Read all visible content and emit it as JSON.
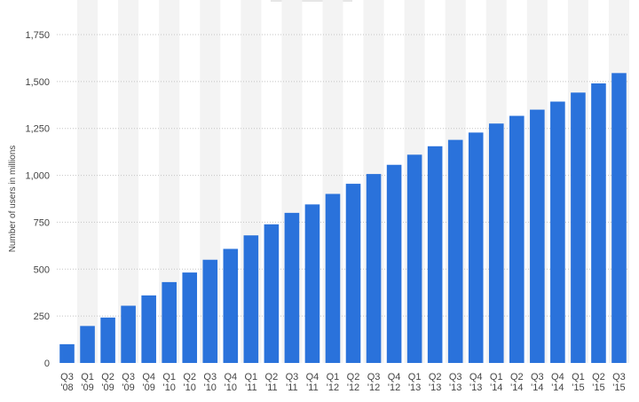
{
  "chart_data": {
    "type": "bar",
    "ylabel": "Number of users in millions",
    "ylim": [
      0,
      1750
    ],
    "yticks": [
      0,
      250,
      500,
      750,
      1000,
      1250,
      1500,
      1750
    ],
    "ytick_labels": [
      "0",
      "250",
      "500",
      "750",
      "1,000",
      "1,250",
      "1,500",
      "1,750"
    ],
    "grid": true,
    "bar_color": "#2a72db",
    "band_color": "#f3f3f3",
    "categories": [
      [
        "Q3",
        "'08"
      ],
      [
        "Q1",
        "'09"
      ],
      [
        "Q2",
        "'09"
      ],
      [
        "Q3",
        "'09"
      ],
      [
        "Q4",
        "'09"
      ],
      [
        "Q1",
        "'10"
      ],
      [
        "Q2",
        "'10"
      ],
      [
        "Q3",
        "'10"
      ],
      [
        "Q4",
        "'10"
      ],
      [
        "Q1",
        "'11"
      ],
      [
        "Q2",
        "'11"
      ],
      [
        "Q3",
        "'11"
      ],
      [
        "Q4",
        "'11"
      ],
      [
        "Q1",
        "'12"
      ],
      [
        "Q2",
        "'12"
      ],
      [
        "Q3",
        "'12"
      ],
      [
        "Q4",
        "'12"
      ],
      [
        "Q1",
        "'13"
      ],
      [
        "Q2",
        "'13"
      ],
      [
        "Q3",
        "'13"
      ],
      [
        "Q4",
        "'13"
      ],
      [
        "Q1",
        "'14"
      ],
      [
        "Q2",
        "'14"
      ],
      [
        "Q3",
        "'14"
      ],
      [
        "Q4",
        "'14"
      ],
      [
        "Q1",
        "'15"
      ],
      [
        "Q2",
        "'15"
      ],
      [
        "Q3",
        "'15"
      ]
    ],
    "values": [
      100,
      197,
      242,
      305,
      360,
      431,
      482,
      550,
      608,
      680,
      739,
      800,
      845,
      901,
      955,
      1007,
      1056,
      1110,
      1155,
      1189,
      1228,
      1276,
      1317,
      1350,
      1393,
      1441,
      1490,
      1545
    ]
  }
}
